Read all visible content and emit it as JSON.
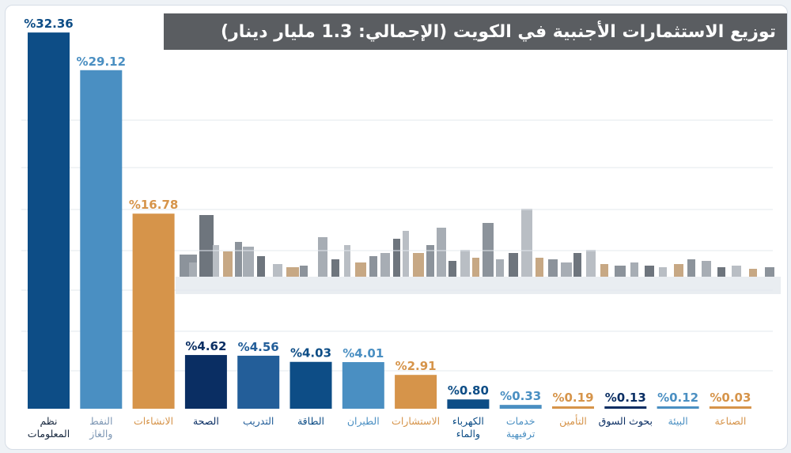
{
  "title": "توزيع الاستثمارات الأجنبية في الكويت (الإجمالي: 1.3 مليار دينار)",
  "chart_data": {
    "type": "bar",
    "title": "توزيع الاستثمارات الأجنبية في الكويت (الإجمالي: 1.3 مليار دينار)",
    "xlabel": "",
    "ylabel": "",
    "ylim": [
      0,
      34
    ],
    "grid": true,
    "categories": [
      [
        "نظم",
        "المعلومات"
      ],
      [
        "النفط",
        "والغاز"
      ],
      [
        "الانشاءات"
      ],
      [
        "الصحة"
      ],
      [
        "التدريب"
      ],
      [
        "الطاقة"
      ],
      [
        "الطيران"
      ],
      [
        "الاستشارات"
      ],
      [
        "الكهرباء",
        "والماء"
      ],
      [
        "خدمات",
        "ترفيهية"
      ],
      [
        "التأمين"
      ],
      [
        "بحوث السوق"
      ],
      [
        "البيئة"
      ],
      [
        "الصناعة"
      ]
    ],
    "values": [
      32.36,
      29.12,
      16.78,
      4.62,
      4.56,
      4.03,
      4.01,
      2.91,
      0.8,
      0.33,
      0.19,
      0.13,
      0.12,
      0.03
    ],
    "value_labels": [
      "%32.36",
      "%29.12",
      "%16.78",
      "%4.62",
      "%4.56",
      "%4.03",
      "%4.01",
      "%2.91",
      "%0.80",
      "%0.33",
      "%0.19",
      "%0.13",
      "%0.12",
      "%0.03"
    ],
    "colors": [
      "#0d4d86",
      "#4a8fc2",
      "#d6944a",
      "#0a2e63",
      "#235e99",
      "#0d4d86",
      "#4a8fc2",
      "#d6944a",
      "#0d4d86",
      "#4a8fc2",
      "#d6944a",
      "#0a2e63",
      "#4a8fc2",
      "#d6944a"
    ],
    "category_label_colors": [
      "#1a2a40",
      "#7f98b5",
      "#d6944a",
      "#0a2e63",
      "#235e99",
      "#0d4d86",
      "#4a8fc2",
      "#d6944a",
      "#0d4d86",
      "#4a8fc2",
      "#d6944a",
      "#0a2e63",
      "#4a8fc2",
      "#d6944a"
    ]
  }
}
